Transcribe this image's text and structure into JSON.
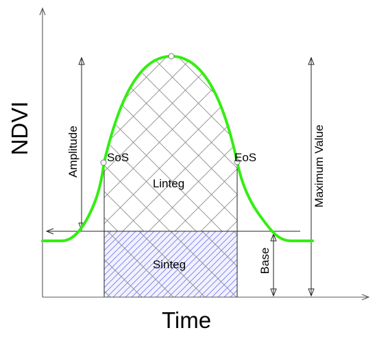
{
  "diagram": {
    "x_axis_label": "Time",
    "y_axis_label": "NDVI",
    "labels": {
      "amplitude": "Amplitude",
      "maximum_value": "Maximum Value",
      "base": "Base",
      "sos": "SoS",
      "eos": "EoS",
      "linteg": "Linteg",
      "sinteg": "Sinteg"
    },
    "colors": {
      "curve": "#33ee11",
      "small_integral_hatch": "#7777ee",
      "large_integral_hatch": "#8a8a8a",
      "axes": "#555555"
    }
  }
}
